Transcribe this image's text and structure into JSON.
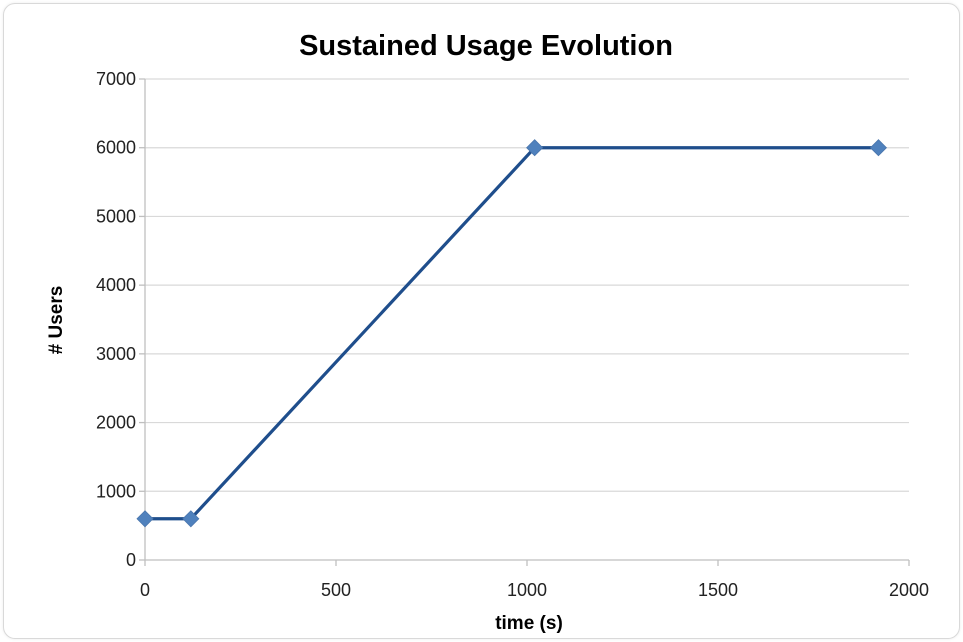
{
  "chart_data": {
    "type": "line",
    "title": "Sustained Usage Evolution",
    "xlabel": "time (s)",
    "ylabel": "# Users",
    "xlim": [
      0,
      2000
    ],
    "ylim": [
      0,
      7000
    ],
    "x_ticks": [
      0,
      500,
      1000,
      1500,
      2000
    ],
    "y_ticks": [
      0,
      1000,
      2000,
      3000,
      4000,
      5000,
      6000,
      7000
    ],
    "grid": "horizontal",
    "legend": "none",
    "series": [
      {
        "color": "#1f4e8c",
        "marker_color": "#4f81bd",
        "marker": "diamond",
        "points": [
          {
            "x": 0,
            "y": 600
          },
          {
            "x": 120,
            "y": 600
          },
          {
            "x": 1020,
            "y": 6000
          },
          {
            "x": 1920,
            "y": 6000
          }
        ]
      }
    ]
  }
}
